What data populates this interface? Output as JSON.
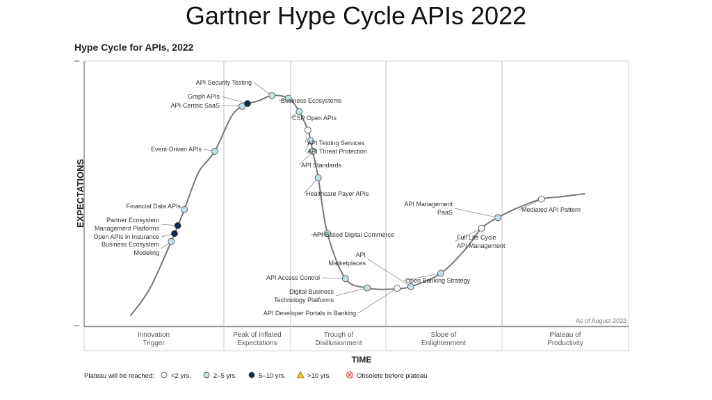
{
  "slide_title": "Gartner Hype Cycle APIs 2022",
  "chart_data": {
    "type": "scatter",
    "title": "Hype Cycle for APIs, 2022",
    "xlabel": "TIME",
    "ylabel": "EXPECTATIONS",
    "note": "As of August 2022",
    "phases": [
      "Innovation Trigger",
      "Peak of Inflated Expectations",
      "Trough of Disillusionment",
      "Slope of Enlightenment",
      "Plateau of Productivity"
    ],
    "legend_title": "Plateau will be reached:",
    "legend": [
      {
        "key": "lt2",
        "label": "<2 yrs.",
        "color": "#ffffff",
        "shape": "circle"
      },
      {
        "key": "2to5",
        "label": "2–5 yrs.",
        "color": "#bfe3ea",
        "shape": "circle"
      },
      {
        "key": "5to10",
        "label": "5–10 yrs.",
        "color": "#0f2a4f",
        "shape": "circle"
      },
      {
        "key": "gt10",
        "label": ">10 yrs.",
        "color": "#f0c020",
        "shape": "triangle"
      },
      {
        "key": "obsolete",
        "label": "Obsolete before plateau",
        "color": "#e34b4b",
        "shape": "cross"
      }
    ],
    "technologies": [
      {
        "name": "Business Ecosystem Modeling",
        "label": [
          "Business Ecosystem",
          "Modeling"
        ],
        "t": 0.16,
        "plateau": "2to5"
      },
      {
        "name": "Open APIs in Insurance",
        "label": [
          "Open APIs in Insurance"
        ],
        "t": 0.166,
        "plateau": "5to10"
      },
      {
        "name": "Partner Ecosystem Management Platforms",
        "label": [
          "Partner Ecosystem",
          "Management Platforms"
        ],
        "t": 0.172,
        "plateau": "5to10"
      },
      {
        "name": "Financial Data APIs",
        "label": [
          "Financial Data APIs"
        ],
        "t": 0.184,
        "plateau": "2to5"
      },
      {
        "name": "Event-Driven APIs",
        "label": [
          "Event-Driven APIs"
        ],
        "t": 0.24,
        "plateau": "2to5"
      },
      {
        "name": "API-Centric SaaS",
        "label": [
          "API-Centric SaaS"
        ],
        "t": 0.29,
        "plateau": "2to5"
      },
      {
        "name": "Graph APIs",
        "label": [
          "Graph APIs"
        ],
        "t": 0.3,
        "plateau": "5to10"
      },
      {
        "name": "API Security Testing",
        "label": [
          "API Security Testing"
        ],
        "t": 0.345,
        "plateau": "2to5"
      },
      {
        "name": "Business Ecosystems",
        "label": [
          "Business Ecosystems"
        ],
        "t": 0.375,
        "plateau": "2to5"
      },
      {
        "name": "CSP Open APIs",
        "label": [
          "CSP Open APIs"
        ],
        "t": 0.395,
        "plateau": "2to5"
      },
      {
        "name": "API Testing Services",
        "label": [
          "API Testing Services"
        ],
        "t": 0.411,
        "plateau": "lt2"
      },
      {
        "name": "API Threat Protection",
        "label": [
          "API Threat Protection"
        ],
        "t": 0.416,
        "plateau": "2to5"
      },
      {
        "name": "API Standards",
        "label": [
          "API Standards"
        ],
        "t": 0.42,
        "plateau": "2to5"
      },
      {
        "name": "Healthcare Payer APIs",
        "label": [
          "Healthcare Payer APIs"
        ],
        "t": 0.43,
        "plateau": "2to5"
      },
      {
        "name": "API-Based Digital Commerce",
        "label": [
          "API-Based Digital Commerce"
        ],
        "t": 0.447,
        "plateau": "2to5"
      },
      {
        "name": "API Access Control",
        "label": [
          "API Access Control"
        ],
        "t": 0.48,
        "plateau": "2to5"
      },
      {
        "name": "Digital Business Technology Platforms",
        "label": [
          "Digital Business",
          "Technology Platforms"
        ],
        "t": 0.52,
        "plateau": "2to5"
      },
      {
        "name": "API Developer Portals in Banking",
        "label": [
          "API Developer Portals in Banking"
        ],
        "t": 0.575,
        "plateau": "lt2"
      },
      {
        "name": "API Marketplaces",
        "label": [
          "API",
          "Marketplaces"
        ],
        "t": 0.6,
        "plateau": "2to5"
      },
      {
        "name": "Open Banking Strategy",
        "label": [
          "Open Banking Strategy"
        ],
        "t": 0.655,
        "plateau": "2to5"
      },
      {
        "name": "Full Life Cycle API Management",
        "label": [
          "Full Life Cycle",
          "API Management"
        ],
        "t": 0.73,
        "plateau": "lt2"
      },
      {
        "name": "API Management PaaS",
        "label": [
          "API Management",
          "PaaS"
        ],
        "t": 0.76,
        "plateau": "2to5"
      },
      {
        "name": "Mediated API Pattern",
        "label": [
          "Mediated API Pattern"
        ],
        "t": 0.84,
        "plateau": "lt2"
      }
    ]
  }
}
